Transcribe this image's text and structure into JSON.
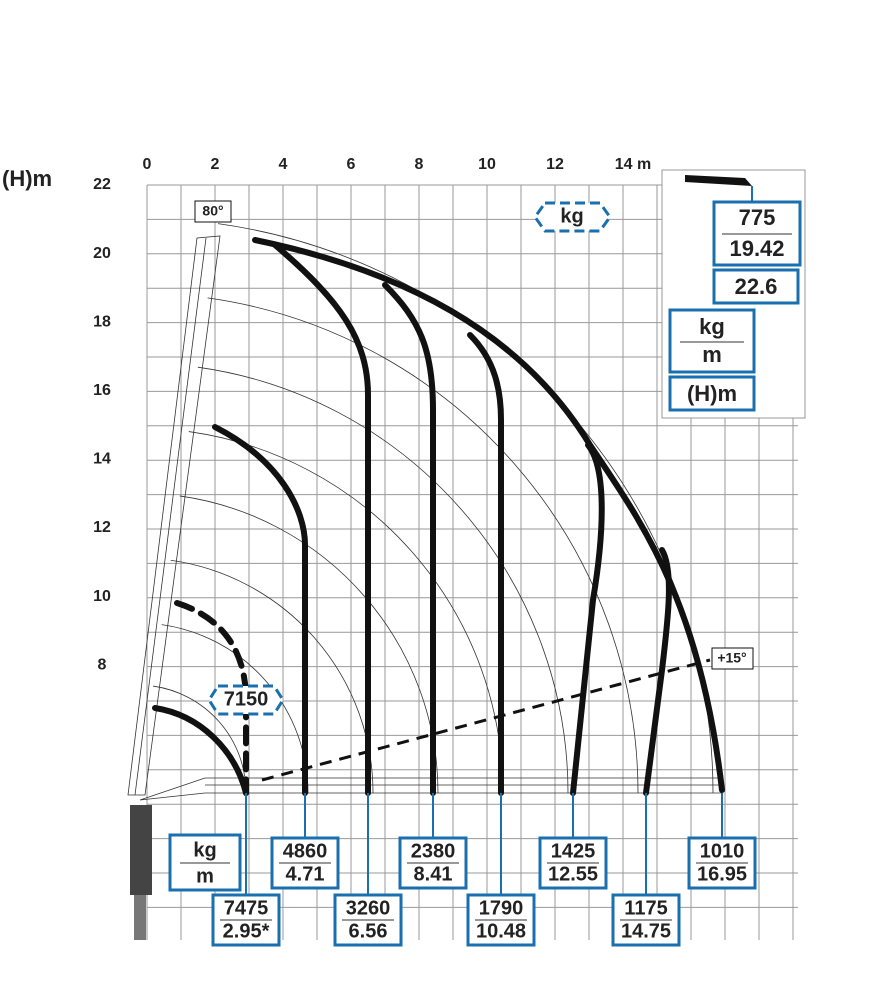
{
  "y_axis_label": "(H)m",
  "x_ticks": [
    "0",
    "2",
    "4",
    "6",
    "8",
    "10",
    "12",
    "14 m"
  ],
  "y_ticks": [
    "22",
    "20",
    "18",
    "16",
    "14",
    "12",
    "10",
    "8"
  ],
  "annotations": {
    "boom_angle": "80°",
    "unit_badge": "kg",
    "dashed_load": "7150",
    "jib_angle": "+15°"
  },
  "legend_box": {
    "kg": "kg",
    "m": "m"
  },
  "load_boxes": [
    {
      "kg": "7475",
      "m": "2.95*"
    },
    {
      "kg": "4860",
      "m": "4.71"
    },
    {
      "kg": "3260",
      "m": "6.56"
    },
    {
      "kg": "2380",
      "m": "8.41"
    },
    {
      "kg": "1790",
      "m": "10.48"
    },
    {
      "kg": "1425",
      "m": "12.55"
    },
    {
      "kg": "1175",
      "m": "14.75"
    },
    {
      "kg": "1010",
      "m": "16.95"
    }
  ],
  "inset": {
    "kg": "775",
    "m": "19.42",
    "height": "22.6",
    "unit_kg": "kg",
    "unit_m": "m",
    "unit_h": "(H)m"
  }
}
